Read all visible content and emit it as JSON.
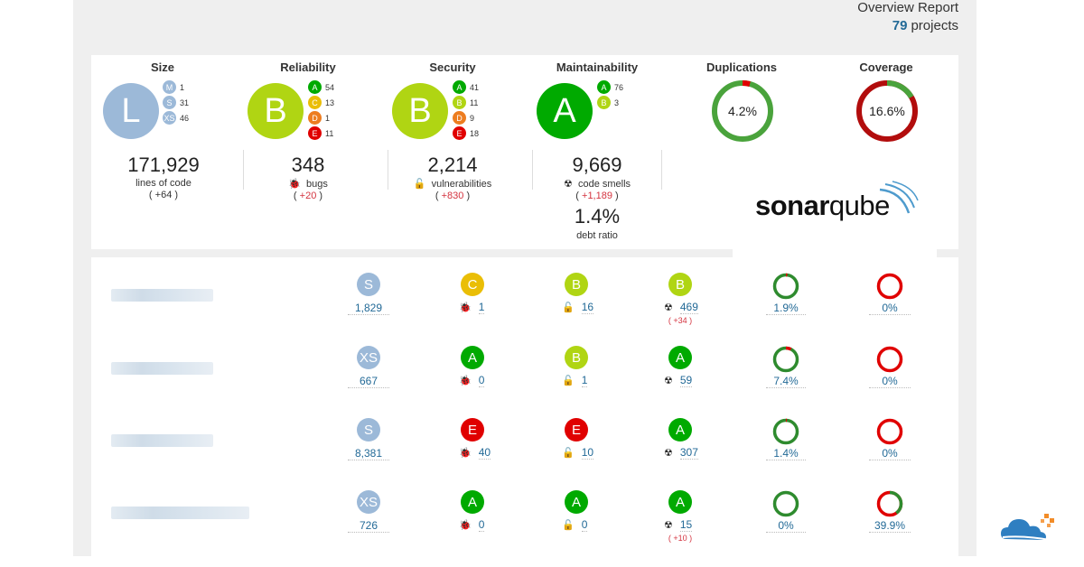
{
  "header": {
    "title": "Overview Report",
    "project_count": "79",
    "projects_label": "projects"
  },
  "summary": {
    "size": {
      "title": "Size",
      "grade": "L",
      "breakdown": [
        {
          "grade": "M",
          "count": "1"
        },
        {
          "grade": "S",
          "count": "31"
        },
        {
          "grade": "XS",
          "count": "46"
        }
      ],
      "value": "171,929",
      "label": "lines of code",
      "delta_open": "( ",
      "delta": "+64",
      "delta_close": " )"
    },
    "reliability": {
      "title": "Reliability",
      "grade": "B",
      "breakdown": [
        {
          "grade": "A",
          "count": "54"
        },
        {
          "grade": "C",
          "count": "13"
        },
        {
          "grade": "D",
          "count": "1"
        },
        {
          "grade": "E",
          "count": "11"
        }
      ],
      "value": "348",
      "label": "bugs",
      "delta": "+20"
    },
    "security": {
      "title": "Security",
      "grade": "B",
      "breakdown": [
        {
          "grade": "A",
          "count": "41"
        },
        {
          "grade": "B",
          "count": "11"
        },
        {
          "grade": "D",
          "count": "9"
        },
        {
          "grade": "E",
          "count": "18"
        }
      ],
      "value": "2,214",
      "label": "vulnerabilities",
      "delta": "+830"
    },
    "maintainability": {
      "title": "Maintainability",
      "grade": "A",
      "breakdown": [
        {
          "grade": "A",
          "count": "76"
        },
        {
          "grade": "B",
          "count": "3"
        }
      ],
      "value": "9,669",
      "label": "code smells",
      "delta": "+1,189",
      "debt_value": "1.4%",
      "debt_label": "debt ratio"
    },
    "duplications": {
      "title": "Duplications",
      "value": "4.2%",
      "fraction": 0.042
    },
    "coverage": {
      "title": "Coverage",
      "value": "16.6%",
      "fraction": 0.166
    }
  },
  "brand": {
    "name_bold": "sonar",
    "name_light": "qube"
  },
  "colors": {
    "A": "#00aa00",
    "B": "#b0d513",
    "C": "#eabe06",
    "D": "#ed7d20",
    "E": "#e00000",
    "size": "#9cb9d8",
    "link": "#236a97",
    "delta": "#d4333f"
  },
  "icons": {
    "bugs": "bug-icon",
    "vulnerabilities": "unlock-icon",
    "code_smells": "radiation-icon"
  },
  "rows": [
    {
      "size": "S",
      "loc": "1,829",
      "rel": "C",
      "bugs": "1",
      "sec": "B",
      "vulns": "16",
      "maint": "B",
      "smells": "469",
      "smells_delta": "( +34 )",
      "dup": "1.9%",
      "dup_f": 0.019,
      "cov": "0%",
      "cov_f": 0
    },
    {
      "size": "XS",
      "loc": "667",
      "rel": "A",
      "bugs": "0",
      "sec": "B",
      "vulns": "1",
      "maint": "A",
      "smells": "59",
      "smells_delta": "",
      "dup": "7.4%",
      "dup_f": 0.074,
      "cov": "0%",
      "cov_f": 0
    },
    {
      "size": "S",
      "loc": "8,381",
      "rel": "E",
      "bugs": "40",
      "sec": "E",
      "vulns": "10",
      "maint": "A",
      "smells": "307",
      "smells_delta": "",
      "dup": "1.4%",
      "dup_f": 0.014,
      "cov": "0%",
      "cov_f": 0
    },
    {
      "size": "XS",
      "loc": "726",
      "rel": "A",
      "bugs": "0",
      "sec": "A",
      "vulns": "0",
      "maint": "A",
      "smells": "15",
      "smells_delta": "( +10 )",
      "dup": "0%",
      "dup_f": 0,
      "cov": "39.9%",
      "cov_f": 0.399
    }
  ]
}
